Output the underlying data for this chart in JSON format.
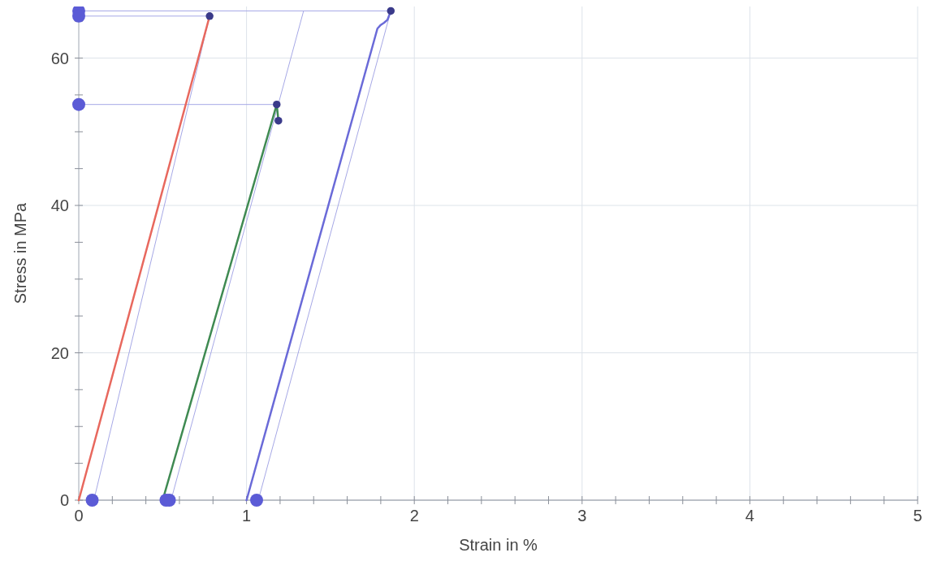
{
  "chart_data": {
    "type": "line",
    "xlabel": "Strain in %",
    "ylabel": "Stress in MPa",
    "xlim": [
      0,
      5
    ],
    "xticks": [
      0,
      {
        "value": 0.2,
        "label": null
      },
      {
        "value": 0.4,
        "label": null
      },
      {
        "value": 0.6,
        "label": null
      },
      {
        "value": 0.8,
        "label": null
      },
      1,
      {
        "value": 1.2,
        "label": null
      },
      {
        "value": 1.4,
        "label": null
      },
      {
        "value": 1.6,
        "label": null
      },
      {
        "value": 1.8,
        "label": null
      },
      2,
      {
        "value": 2.2,
        "label": null
      },
      {
        "value": 2.4,
        "label": null
      },
      {
        "value": 2.6,
        "label": null
      },
      {
        "value": 2.8,
        "label": null
      },
      3,
      {
        "value": 3.2,
        "label": null
      },
      {
        "value": 3.4,
        "label": null
      },
      {
        "value": 3.6,
        "label": null
      },
      {
        "value": 3.8,
        "label": null
      },
      4,
      {
        "value": 4.2,
        "label": null
      },
      {
        "value": 4.4,
        "label": null
      },
      {
        "value": 4.6,
        "label": null
      },
      {
        "value": 4.8,
        "label": null
      },
      5
    ],
    "ylim": [
      0,
      67
    ],
    "yticks": [
      0,
      {
        "value": 5,
        "label": null
      },
      {
        "value": 10,
        "label": null
      },
      {
        "value": 15,
        "label": null
      },
      20,
      {
        "value": 25,
        "label": null
      },
      {
        "value": 30,
        "label": null
      },
      {
        "value": 35,
        "label": null
      },
      40,
      {
        "value": 45,
        "label": null
      },
      {
        "value": 50,
        "label": null
      },
      {
        "value": 55,
        "label": null
      },
      60,
      {
        "value": 65,
        "label": null
      }
    ],
    "grid": true,
    "series": [
      {
        "type": "line",
        "color": "#a6a8e6",
        "x": [
          0.09,
          0.78
        ],
        "values": [
          0,
          65.7
        ],
        "marker": "none"
      },
      {
        "type": "line",
        "color": "#a6a8e6",
        "x": [
          0.55,
          1.34
        ],
        "values": [
          0,
          66.4
        ],
        "marker": "none"
      },
      {
        "type": "line",
        "color": "#a6a8e6",
        "x": [
          1.07,
          1.86
        ],
        "values": [
          0,
          66.4
        ],
        "marker": "none"
      },
      {
        "type": "line",
        "color": "#a6a8e6",
        "x": [
          0,
          1.86
        ],
        "values": [
          66.4,
          66.4
        ],
        "marker": "none"
      },
      {
        "type": "line",
        "color": "#a6a8e6",
        "x": [
          0,
          0.78
        ],
        "values": [
          65.7,
          65.7
        ],
        "marker": "none"
      },
      {
        "type": "line",
        "color": "#a6a8e6",
        "x": [
          0,
          1.18
        ],
        "values": [
          53.7,
          53.7
        ],
        "marker": "none"
      },
      {
        "type": "line",
        "color": "#e8685e",
        "x": [
          0,
          0.78
        ],
        "values": [
          0,
          65.7
        ],
        "marker": "none"
      },
      {
        "type": "line",
        "color": "#3f8a52",
        "x": [
          0.5,
          1.18,
          1.19
        ],
        "values": [
          0,
          53.7,
          51.5
        ],
        "marker": "none"
      },
      {
        "type": "line",
        "color": "#6a6ad8",
        "x": [
          1.0,
          1.78,
          1.8,
          1.82,
          1.84,
          1.86
        ],
        "values": [
          0,
          64,
          64.5,
          64.8,
          65.2,
          66.4
        ],
        "marker": "none"
      },
      {
        "type": "bubble",
        "colors": [
          "#5b5bd6",
          "#5b5bd6",
          "#5b5bd6",
          "#5b5bd6",
          "#5b5bd6",
          "#5b5bd6",
          "#5b5bd6",
          "#3a3a8a",
          "#3a3a8a",
          "#3a3a8a",
          "#3a3a8a"
        ],
        "x": [
          0,
          0,
          0,
          0.08,
          0.52,
          0.54,
          1.06,
          0.78,
          1.18,
          1.19,
          1.86
        ],
        "values": [
          66.4,
          65.7,
          53.7,
          0,
          0,
          0,
          0,
          65.7,
          53.7,
          51.5,
          66.4
        ],
        "sizes": [
          1,
          1,
          1,
          1,
          1,
          1,
          1,
          0.35,
          0.35,
          0.35,
          0.35
        ]
      }
    ]
  }
}
